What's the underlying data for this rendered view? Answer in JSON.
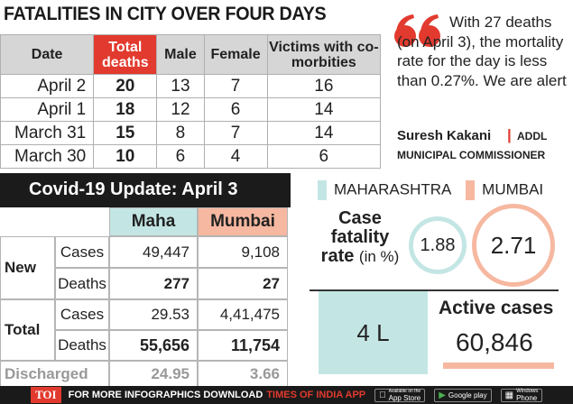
{
  "title": "FATALITIES IN CITY OVER FOUR DAYS",
  "fatalities": {
    "headers": [
      "Date",
      "Total deaths",
      "Male",
      "Female",
      "Victims with co-morbities"
    ],
    "rows": [
      [
        "April 2",
        "20",
        "13",
        "7",
        "16"
      ],
      [
        "April 1",
        "18",
        "12",
        "6",
        "14"
      ],
      [
        "March 31",
        "15",
        "8",
        "7",
        "14"
      ],
      [
        "March 30",
        "10",
        "6",
        "4",
        "6"
      ]
    ]
  },
  "quote": {
    "text": "With 27 deaths (on April 3), the mortality rate for the day is less than 0.27%. We are alert",
    "name": "Suresh Kakani",
    "separator": "|",
    "role_part1": "ADDL",
    "role_part2": "MUNICIPAL COMMISSIONER"
  },
  "update": {
    "title": "Covid-19 Update: April 3",
    "col_maha": "Maha",
    "col_mumbai": "Mumbai",
    "group_new": "New",
    "group_total": "Total",
    "label_cases": "Cases",
    "label_deaths": "Deaths",
    "label_discharged": "Discharged",
    "new_cases": [
      "49,447",
      "9,108"
    ],
    "new_deaths": [
      "277",
      "27"
    ],
    "total_cases": [
      "29.53",
      "4,41,475"
    ],
    "total_deaths": [
      "55,656",
      "11,754"
    ],
    "discharged": [
      "24.95",
      "3.66"
    ]
  },
  "legend": {
    "maha": "MAHARASHTRA",
    "mumbai": "MUMBAI"
  },
  "cfr": {
    "label": "Case fatality rate",
    "unit": "(in %)",
    "maha": "1.88",
    "mumbai": "2.71"
  },
  "active": {
    "title": "Active cases",
    "maha": "4 L",
    "mumbai": "60,846"
  },
  "footer": {
    "logo": "TOI",
    "text": "FOR MORE INFOGRAPHICS DOWNLOAD",
    "brand": "TIMES OF INDIA APP",
    "store1_small": "Available on the",
    "store1": "App Store",
    "store2": "Google play",
    "store3_small": "Windows",
    "store3": "Phone"
  },
  "colors": {
    "red": "#e23a2e",
    "maha_teal": "#c3e6e4",
    "mumbai_salmon": "#f6b8a0",
    "header_dark": "#1b1b1b"
  }
}
